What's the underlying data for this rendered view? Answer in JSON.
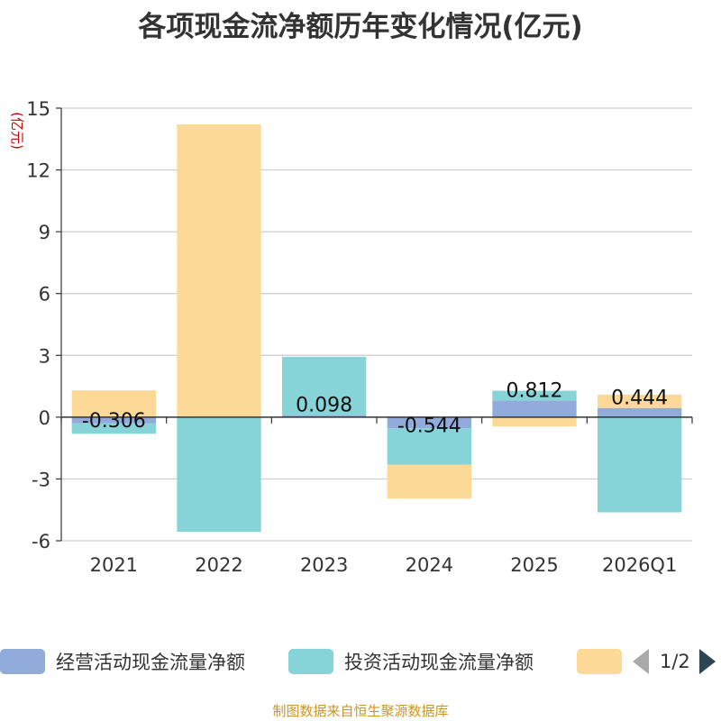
{
  "chart_data": {
    "type": "bar",
    "stacked": true,
    "title": "各项现金流净额历年变化情况(亿元)",
    "ylabel": "(亿元)",
    "ylim": [
      -6,
      15
    ],
    "yticks": [
      15,
      12,
      9,
      6,
      3,
      0,
      -3,
      -6
    ],
    "categories": [
      "2021",
      "2022",
      "2023",
      "2024",
      "2025",
      "2026Q1"
    ],
    "series": [
      {
        "name": "经营活动现金流量净额",
        "color": "#91acda",
        "values": [
          -0.306,
          0.01,
          0.098,
          -0.544,
          0.812,
          0.444
        ]
      },
      {
        "name": "投资活动现金流量净额",
        "color": "#86d3d8",
        "values": [
          -0.5,
          -5.57,
          2.83,
          -1.76,
          0.47,
          -4.62
        ]
      },
      {
        "name": "",
        "color": "#fdd997",
        "values": [
          1.3,
          14.2,
          0.0,
          -1.65,
          -0.45,
          0.65
        ]
      }
    ],
    "data_labels": [
      "-0.306",
      "",
      "0.098",
      "-0.544",
      "0.812",
      "0.444"
    ]
  },
  "legend": {
    "pager": "1/2"
  },
  "footer": "制图数据来自恒生聚源数据库"
}
